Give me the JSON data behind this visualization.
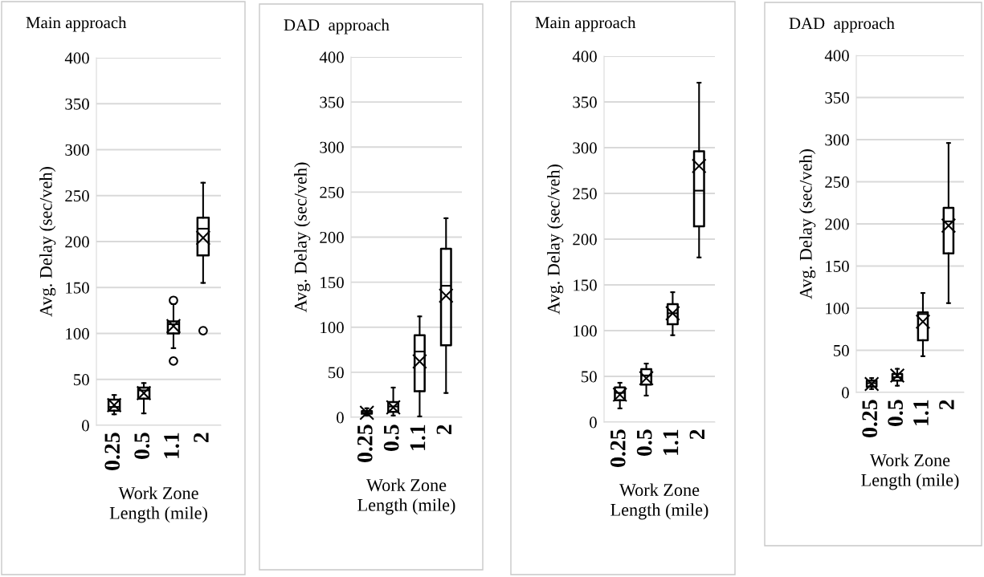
{
  "chart_data": [
    {
      "type": "box",
      "title": "Main approach",
      "xlabel": "Work Zone\nLength (mile)",
      "ylabel": "Avg. Delay (sec/veh)",
      "categories": [
        "0.25",
        "0.5",
        "1.1",
        "2"
      ],
      "ylim": [
        0,
        400
      ],
      "yticks": [
        0,
        50,
        100,
        150,
        200,
        250,
        300,
        350,
        400
      ],
      "grid": "y",
      "boxes": [
        {
          "low": 12,
          "q1": 16,
          "median": 20,
          "q3": 28,
          "high": 33,
          "mean": 22
        },
        {
          "low": 13,
          "q1": 29,
          "median": 38,
          "q3": 41,
          "high": 46,
          "mean": 35
        },
        {
          "low": 84,
          "q1": 100,
          "median": 110,
          "q3": 113,
          "high": 132,
          "mean": 108,
          "outliers": [
            136,
            70
          ]
        },
        {
          "low": 155,
          "q1": 185,
          "median": 214,
          "q3": 226,
          "high": 264,
          "mean": 204,
          "outliers": [
            103
          ]
        }
      ]
    },
    {
      "type": "box",
      "title": "DAD  approach",
      "xlabel": "Work Zone\nLength (mile)",
      "ylabel": "Avg. Delay (sec/veh)",
      "categories": [
        "0.25",
        "0.5",
        "1.1",
        "2"
      ],
      "ylim": [
        0,
        400
      ],
      "yticks": [
        0,
        50,
        100,
        150,
        200,
        250,
        300,
        350,
        400
      ],
      "grid": "y",
      "boxes": [
        {
          "low": 2,
          "q1": 4,
          "median": 5,
          "q3": 7,
          "high": 10,
          "mean": 5
        },
        {
          "low": 2,
          "q1": 6,
          "median": 12,
          "q3": 17,
          "high": 33,
          "mean": 11
        },
        {
          "low": 1,
          "q1": 29,
          "median": 73,
          "q3": 91,
          "high": 112,
          "mean": 62
        },
        {
          "low": 27,
          "q1": 80,
          "median": 146,
          "q3": 187,
          "high": 221,
          "mean": 135
        }
      ]
    },
    {
      "type": "box",
      "title": "Main approach",
      "xlabel": "Work Zone\nLength (mile)",
      "ylabel": "Avg. Delay (sec/veh)",
      "categories": [
        "0.25",
        "0.5",
        "1.1",
        "2"
      ],
      "ylim": [
        0,
        400
      ],
      "yticks": [
        0,
        50,
        100,
        150,
        200,
        250,
        300,
        350,
        400
      ],
      "grid": "y",
      "boxes": [
        {
          "low": 15,
          "q1": 24,
          "median": 32,
          "q3": 38,
          "high": 43,
          "mean": 30
        },
        {
          "low": 29,
          "q1": 41,
          "median": 51,
          "q3": 58,
          "high": 64,
          "mean": 48
        },
        {
          "low": 95,
          "q1": 107,
          "median": 119,
          "q3": 129,
          "high": 142,
          "mean": 119
        },
        {
          "low": 180,
          "q1": 214,
          "median": 253,
          "q3": 296,
          "high": 371,
          "mean": 280
        }
      ]
    },
    {
      "type": "box",
      "title": "DAD  approach",
      "xlabel": "Work Zone\nLength (mile)",
      "ylabel": "Avg. Delay (sec/veh)",
      "categories": [
        "0.25",
        "0.5",
        "1.1",
        "2"
      ],
      "ylim": [
        0,
        400
      ],
      "yticks": [
        0,
        50,
        100,
        150,
        200,
        250,
        300,
        350,
        400
      ],
      "grid": "y",
      "boxes": [
        {
          "low": 4,
          "q1": 7,
          "median": 11,
          "q3": 14,
          "high": 17,
          "mean": 10
        },
        {
          "low": 8,
          "q1": 14,
          "median": 18,
          "q3": 22,
          "high": 28,
          "mean": 20
        },
        {
          "low": 43,
          "q1": 62,
          "median": 93,
          "q3": 95,
          "high": 118,
          "mean": 84
        },
        {
          "low": 106,
          "q1": 165,
          "median": 203,
          "q3": 219,
          "high": 296,
          "mean": 198
        }
      ]
    }
  ]
}
